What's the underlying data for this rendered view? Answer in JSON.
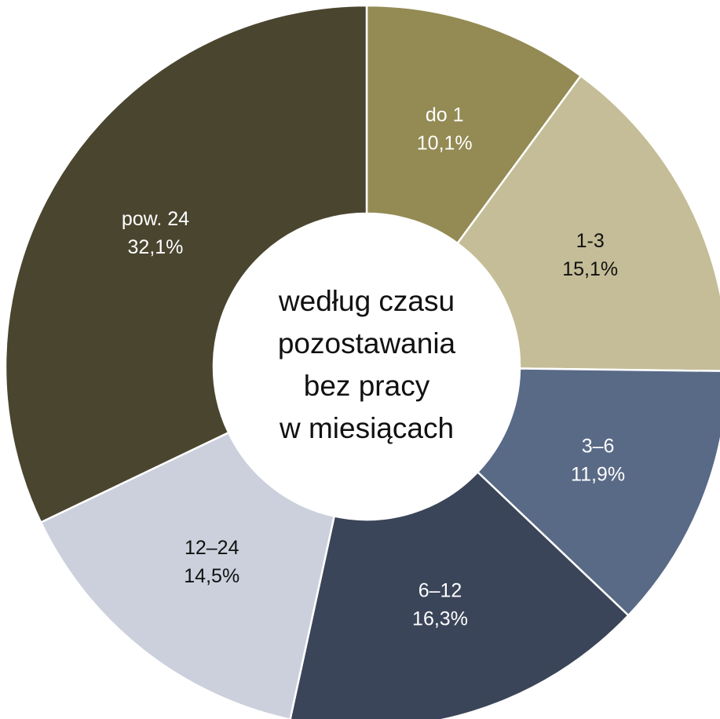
{
  "chart_data": {
    "type": "pie",
    "categories": [
      "do 1",
      "1-3",
      "3–6",
      "6–12",
      "12–24",
      "pow. 24"
    ],
    "values": [
      10.1,
      15.1,
      11.9,
      16.3,
      14.5,
      32.1
    ],
    "value_labels": [
      "10,1%",
      "15,1%",
      "11,9%",
      "16,3%",
      "14,5%",
      "32,1%"
    ],
    "colors": [
      "#948a54",
      "#c4bd97",
      "#596a86",
      "#3b4559",
      "#cbd0dc",
      "#4a452f"
    ],
    "center_label": [
      "według czasu",
      "pozostawania",
      "bez pracy",
      "w miesiącach"
    ]
  }
}
